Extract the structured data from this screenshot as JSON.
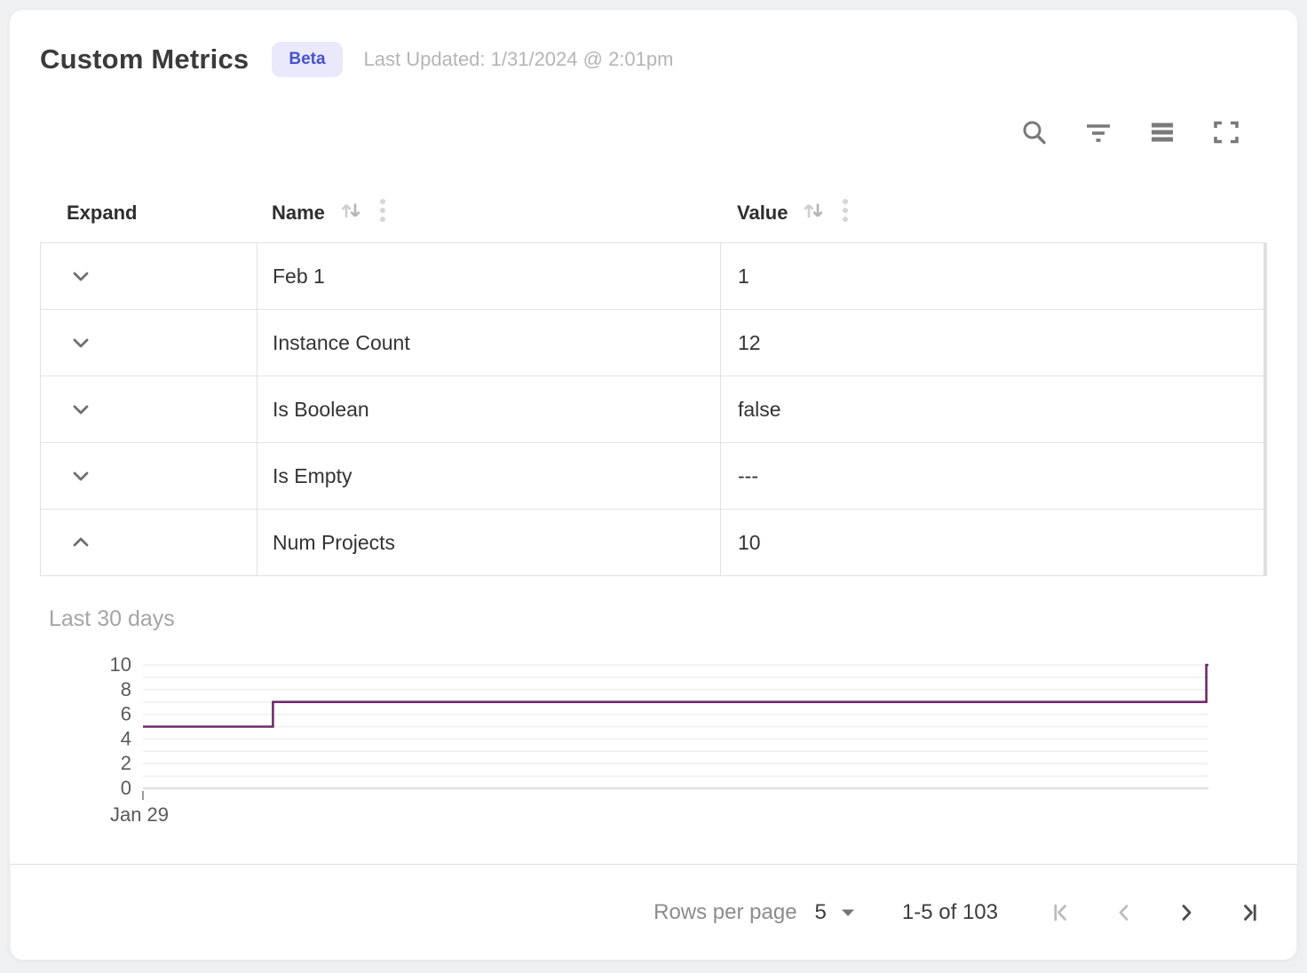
{
  "header": {
    "title": "Custom Metrics",
    "badge": "Beta",
    "last_updated": "Last Updated: 1/31/2024 @ 2:01pm"
  },
  "toolbar": {
    "icons": [
      "search",
      "filter",
      "density",
      "fullscreen"
    ]
  },
  "table": {
    "columns": [
      {
        "label": "Expand",
        "sortable": false
      },
      {
        "label": "Name",
        "sortable": true
      },
      {
        "label": "Value",
        "sortable": true
      }
    ],
    "rows": [
      {
        "name": "Feb 1",
        "value": "1",
        "expanded": false
      },
      {
        "name": "Instance Count",
        "value": "12",
        "expanded": false
      },
      {
        "name": "Is Boolean",
        "value": "false",
        "expanded": false
      },
      {
        "name": "Is Empty",
        "value": "---",
        "expanded": false
      },
      {
        "name": "Num Projects",
        "value": "10",
        "expanded": true
      }
    ]
  },
  "chart_section": {
    "title": "Last 30 days"
  },
  "chart_data": {
    "type": "line",
    "subtype": "step",
    "title": "Last 30 days",
    "series_name": "Num Projects",
    "steps": [
      {
        "from_frac": 0.0,
        "to_frac": 0.122,
        "value": 5
      },
      {
        "from_frac": 0.122,
        "to_frac": 0.998,
        "value": 7
      },
      {
        "from_frac": 0.998,
        "to_frac": 1.0,
        "value": 10
      }
    ],
    "ylim": [
      0,
      10
    ],
    "yticks": [
      10,
      8,
      6,
      4,
      2,
      0
    ],
    "xticks": [
      {
        "label": "Jan 29",
        "x_frac": 0
      }
    ],
    "grid": true,
    "legend": false,
    "line_color": "#6e2a6e"
  },
  "pagination": {
    "rows_per_page_label": "Rows per page",
    "rows_per_page_value": "5",
    "range_label": "1-5 of 103",
    "first_disabled": true,
    "prev_disabled": true,
    "next_disabled": false,
    "last_disabled": false
  },
  "colors": {
    "badge_bg": "#e9e9fb",
    "badge_text": "#4653c8",
    "icon_gray": "#7a7a7a",
    "nav_disabled": "#bdbdbd",
    "nav_enabled": "#4d4d4d",
    "line_color": "#6e2a6e"
  }
}
